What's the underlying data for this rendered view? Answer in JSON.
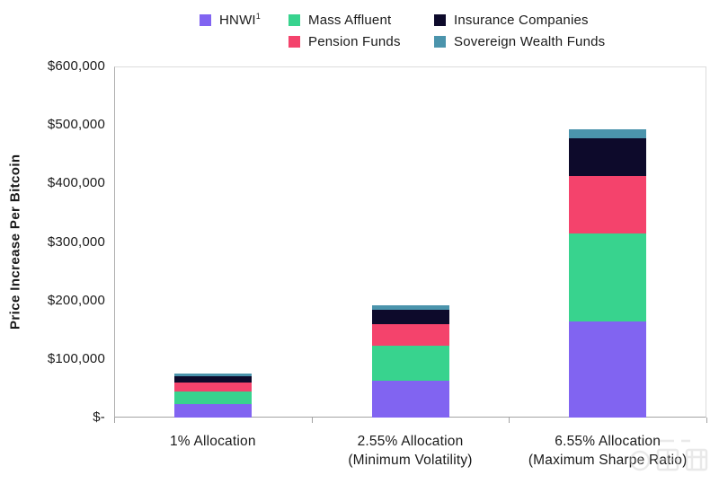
{
  "chart_data": {
    "type": "bar",
    "stacked": true,
    "title": "",
    "xlabel": "",
    "ylabel": "Price Increase Per Bitcoin",
    "ylim": [
      0,
      600000
    ],
    "grid": false,
    "legend_position": "top",
    "y_ticks": [
      {
        "value": 600000,
        "label": "$600,000"
      },
      {
        "value": 500000,
        "label": "$500,000"
      },
      {
        "value": 400000,
        "label": "$400,000"
      },
      {
        "value": 300000,
        "label": "$300,000"
      },
      {
        "value": 200000,
        "label": "$200,000"
      },
      {
        "value": 100000,
        "label": "$100,000"
      },
      {
        "value": 0,
        "label": "$-"
      }
    ],
    "categories": [
      "1% Allocation",
      "2.55% Allocation (Minimum Volatility)",
      "6.55% Allocation (Maximum Sharpe Ratio)"
    ],
    "categories_lines": [
      [
        "1% Allocation"
      ],
      [
        "2.55% Allocation",
        "(Minimum Volatility)"
      ],
      [
        "6.55% Allocation",
        "(Maximum Sharpe Ratio)"
      ]
    ],
    "series": [
      {
        "name": "HNWI",
        "sup": "1",
        "color": "#8164F1",
        "values": [
          23000,
          62500,
          163500
        ]
      },
      {
        "name": "Mass Affluent",
        "color": "#38D38E",
        "values": [
          21500,
          60500,
          150500
        ]
      },
      {
        "name": "Pension Funds",
        "color": "#F4436C",
        "values": [
          15500,
          37000,
          98500
        ]
      },
      {
        "name": "Insurance Companies",
        "color": "#0D0A2B",
        "values": [
          11000,
          24500,
          64500
        ]
      },
      {
        "name": "Sovereign Wealth Funds",
        "color": "#4B94AC",
        "values": [
          4500,
          7500,
          15500
        ]
      }
    ],
    "legend_columns": [
      [
        0
      ],
      [
        1,
        2
      ],
      [
        3,
        4
      ]
    ]
  },
  "watermark": {
    "label": "智东西"
  }
}
